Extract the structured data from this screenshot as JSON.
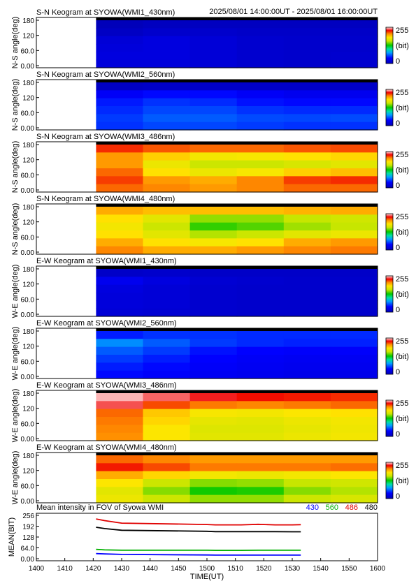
{
  "header": {
    "datetime_range": "2025/08/01 14:00:00UT - 2025/08/01 16:00:00UT"
  },
  "colorbar": {
    "max_label": "255",
    "unit_label": "(bit)",
    "min_label": "0",
    "range": [
      0,
      255
    ]
  },
  "chart_data": [
    {
      "type": "heatmap",
      "title": "S-N Keogram at SYOWA(WMI1_430nm)",
      "ylabel": "N-S angle(deg)",
      "yticks": [
        "180",
        "120",
        "60.0",
        "0.00"
      ],
      "ylim": [
        0,
        180
      ],
      "xlim": [
        1400,
        1600
      ],
      "data_start": 1435,
      "rows": [
        [
          3,
          6,
          6,
          6,
          6,
          6
        ],
        [
          8,
          12,
          12,
          10,
          10,
          10
        ],
        [
          18,
          22,
          18,
          14,
          12,
          12
        ],
        [
          20,
          22,
          18,
          14,
          12,
          12
        ],
        [
          22,
          22,
          18,
          14,
          12,
          14
        ],
        [
          20,
          20,
          18,
          14,
          12,
          14
        ]
      ]
    },
    {
      "type": "heatmap",
      "title": "S-N Keogram at SYOWA(WMI2_560nm)",
      "ylabel": "N-S angle(deg)",
      "yticks": [
        "180",
        "120",
        "60.0",
        "0.00"
      ],
      "ylim": [
        0,
        180
      ],
      "xlim": [
        1400,
        1600
      ],
      "data_start": 1435,
      "rows": [
        [
          8,
          10,
          10,
          10,
          10,
          10
        ],
        [
          34,
          40,
          40,
          34,
          30,
          30
        ],
        [
          44,
          50,
          48,
          42,
          40,
          40
        ],
        [
          48,
          55,
          55,
          50,
          48,
          48
        ],
        [
          52,
          60,
          60,
          56,
          55,
          56
        ],
        [
          50,
          55,
          55,
          52,
          50,
          50
        ]
      ]
    },
    {
      "type": "heatmap",
      "title": "S-N Keogram at SYOWA(WMI3_486nm)",
      "ylabel": "N-S angle(deg)",
      "yticks": [
        "180",
        "120",
        "60.0",
        "0.00"
      ],
      "ylim": [
        0,
        180
      ],
      "xlim": [
        1400,
        1600
      ],
      "data_start": 1435,
      "rows": [
        [
          225,
          218,
          215,
          215,
          218,
          220
        ],
        [
          205,
          190,
          178,
          180,
          185,
          188
        ],
        [
          205,
          175,
          160,
          160,
          165,
          170
        ],
        [
          215,
          185,
          175,
          180,
          190,
          195
        ],
        [
          222,
          205,
          200,
          210,
          222,
          225
        ],
        [
          215,
          210,
          205,
          210,
          215,
          215
        ]
      ]
    },
    {
      "type": "heatmap",
      "title": "S-N Keogram at SYOWA(WMI4_480nm)",
      "ylabel": "N-S angle(deg)",
      "yticks": [
        "180",
        "120",
        "60.0",
        "0.00"
      ],
      "ylim": [
        0,
        180
      ],
      "xlim": [
        1400,
        1600
      ],
      "data_start": 1435,
      "rows": [
        [
          200,
          195,
          195,
          195,
          198,
          200
        ],
        [
          185,
          170,
          150,
          150,
          158,
          162
        ],
        [
          178,
          160,
          135,
          140,
          152,
          158
        ],
        [
          185,
          170,
          155,
          160,
          170,
          175
        ],
        [
          200,
          185,
          180,
          185,
          200,
          205
        ],
        [
          210,
          200,
          200,
          205,
          210,
          212
        ]
      ]
    },
    {
      "type": "heatmap",
      "title": "E-W Keogram at SYOWA(WMI1_430nm)",
      "ylabel": "W-E angle(deg)",
      "yticks": [
        "180",
        "120",
        "60.0",
        "0.00"
      ],
      "ylim": [
        0,
        180
      ],
      "xlim": [
        1400,
        1600
      ],
      "data_start": 1435,
      "rows": [
        [
          10,
          12,
          10,
          10,
          10,
          10
        ],
        [
          30,
          22,
          16,
          14,
          12,
          12
        ],
        [
          22,
          18,
          14,
          12,
          12,
          12
        ],
        [
          20,
          18,
          14,
          12,
          12,
          12
        ],
        [
          20,
          18,
          14,
          12,
          12,
          12
        ],
        [
          18,
          16,
          14,
          12,
          12,
          12
        ]
      ]
    },
    {
      "type": "heatmap",
      "title": "E-W Keogram at SYOWA(WMI2_560nm)",
      "ylabel": "W-E angle(deg)",
      "yticks": [
        "180",
        "120",
        "60.0",
        "0.00"
      ],
      "ylim": [
        0,
        180
      ],
      "xlim": [
        1400,
        1600
      ],
      "data_start": 1435,
      "rows": [
        [
          45,
          50,
          50,
          48,
          48,
          48
        ],
        [
          72,
          60,
          52,
          48,
          46,
          46
        ],
        [
          60,
          52,
          42,
          38,
          36,
          36
        ],
        [
          52,
          45,
          38,
          34,
          32,
          32
        ],
        [
          45,
          40,
          35,
          32,
          30,
          30
        ],
        [
          40,
          36,
          32,
          30,
          28,
          28
        ]
      ]
    },
    {
      "type": "heatmap",
      "title": "E-W Keogram at SYOWA(WMI3_486nm)",
      "ylabel": "W-E angle(deg)",
      "yticks": [
        "180",
        "120",
        "60.0",
        "0.00"
      ],
      "ylim": [
        0,
        180
      ],
      "xlim": [
        1400,
        1600
      ],
      "data_start": 1435,
      "rows": [
        [
          250,
          242,
          235,
          230,
          228,
          225
        ],
        [
          240,
          220,
          212,
          210,
          212,
          215
        ],
        [
          215,
          192,
          180,
          178,
          182,
          185
        ],
        [
          212,
          188,
          172,
          170,
          175,
          178
        ],
        [
          210,
          182,
          168,
          168,
          172,
          176
        ],
        [
          208,
          182,
          170,
          170,
          175,
          178
        ]
      ]
    },
    {
      "type": "heatmap",
      "title": "E-W Keogram at SYOWA(WMI4_480nm)",
      "ylabel": "W-E angle(deg)",
      "yticks": [
        "180",
        "120",
        "60.0",
        "0.00"
      ],
      "ylim": [
        0,
        180
      ],
      "xlim": [
        1400,
        1600
      ],
      "data_start": 1435,
      "rows": [
        [
          215,
          210,
          205,
          205,
          205,
          205
        ],
        [
          228,
          220,
          212,
          212,
          212,
          214
        ],
        [
          200,
          188,
          178,
          175,
          178,
          182
        ],
        [
          182,
          160,
          148,
          150,
          158,
          162
        ],
        [
          170,
          148,
          130,
          132,
          148,
          155
        ],
        [
          175,
          160,
          150,
          150,
          160,
          165
        ]
      ]
    },
    {
      "type": "line",
      "title": "Mean intensity in FOV of Syowa WMI",
      "ylabel": "MEAN(BIT)",
      "xlabel": "TIME(UT)",
      "ylim": [
        0,
        256
      ],
      "xlim": [
        1400,
        1600
      ],
      "yticks": [
        [
          "256",
          256
        ],
        [
          "192",
          192
        ],
        [
          "128",
          128
        ],
        [
          "64.0",
          64
        ],
        [
          "0.00",
          0
        ]
      ],
      "xticks": [
        "1400",
        "1410",
        "1420",
        "1430",
        "1440",
        "1450",
        "1500",
        "1510",
        "1520",
        "1530",
        "1540",
        "1550",
        "1600"
      ],
      "x": [
        1435,
        1440,
        1450,
        1500,
        1505,
        1510,
        1520,
        1530,
        1540,
        1550,
        1555
      ],
      "series": [
        {
          "name": "430",
          "color": "#0000ff",
          "values": [
            30,
            28,
            25,
            22,
            21,
            21,
            21,
            21,
            21,
            21,
            21
          ]
        },
        {
          "name": "560",
          "color": "#00b000",
          "values": [
            55,
            52,
            50,
            50,
            49,
            49,
            49,
            50,
            50,
            50,
            50
          ]
        },
        {
          "name": "486",
          "color": "#e00000",
          "values": [
            235,
            225,
            210,
            202,
            200,
            200,
            200,
            203,
            200,
            200,
            201
          ]
        },
        {
          "name": "480",
          "color": "#000000",
          "values": [
            186,
            178,
            168,
            162,
            160,
            160,
            160,
            160,
            160,
            159,
            159
          ]
        }
      ]
    }
  ]
}
